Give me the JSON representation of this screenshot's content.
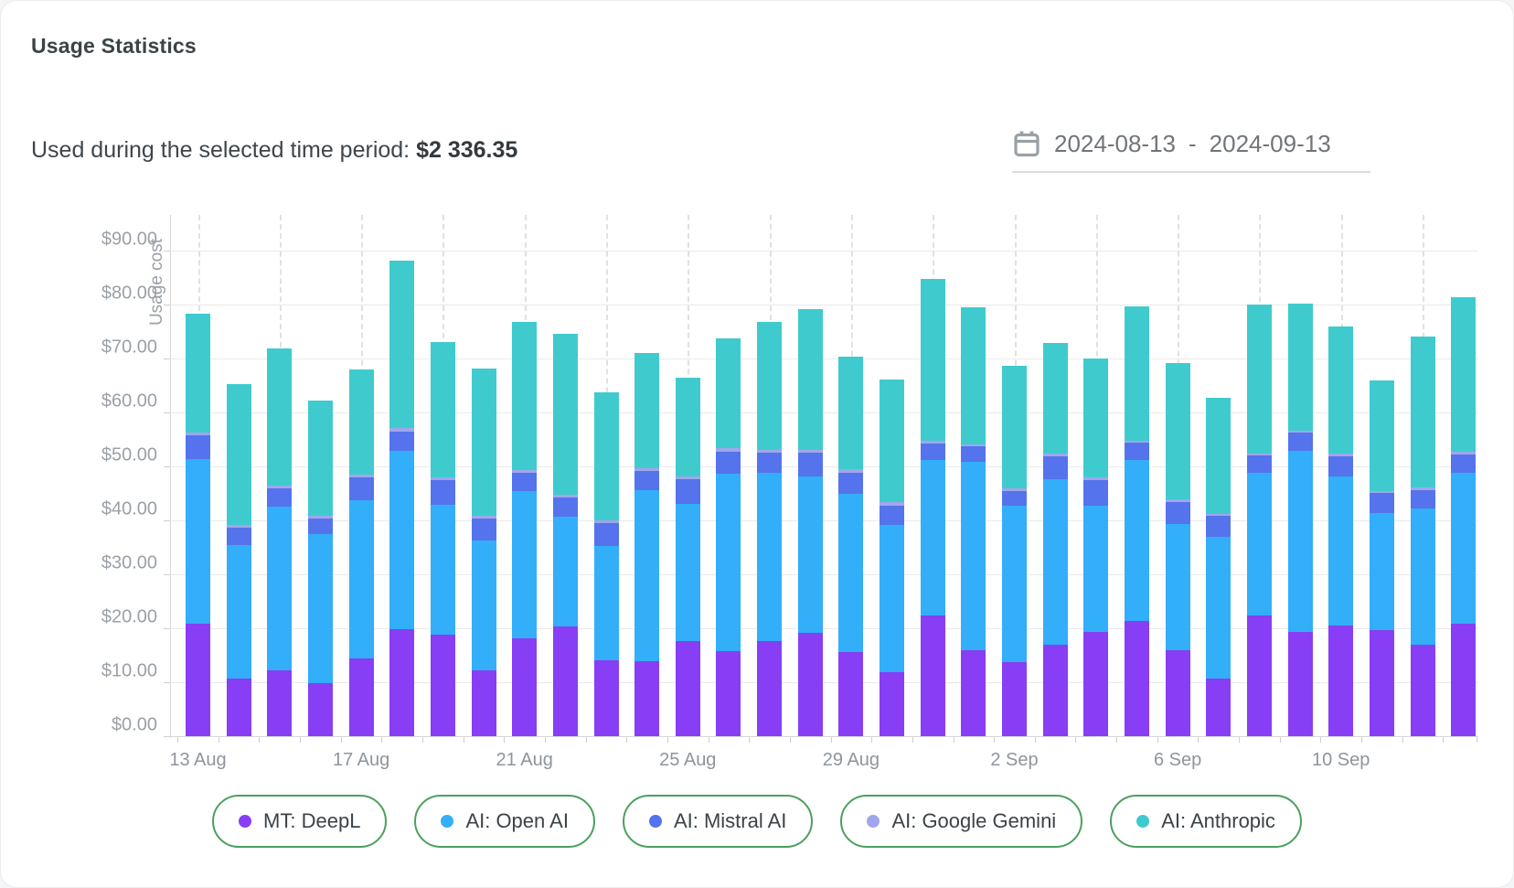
{
  "header": {
    "title": "Usage Statistics"
  },
  "summary": {
    "label": "Used during the selected time period: ",
    "value": "$2 336.35"
  },
  "date_range": {
    "start": "2024-08-13",
    "separator": "-",
    "end": "2024-09-13",
    "icon": "calendar-icon"
  },
  "colors": {
    "deepl": "#873EF4",
    "openai": "#33AEF8",
    "mistral": "#5573EC",
    "gemini": "#A0A6EC",
    "anthropic": "#3FCBCE",
    "legend_border": "#4ca05d",
    "grid": "#eaeaea",
    "axis_text": "#9aa0a6"
  },
  "chart_data": {
    "type": "bar",
    "stacked": true,
    "title": "",
    "xlabel": "",
    "ylabel": "Usage cost",
    "ylim": [
      0,
      95.8
    ],
    "ytick_step": 10,
    "ytick_prefix": "$",
    "ytick_suffix": ".00",
    "grid": true,
    "legend_position": "bottom",
    "label_every": 4,
    "x_labeled_ticks": [
      "13 Aug",
      "17 Aug",
      "21 Aug",
      "25 Aug",
      "29 Aug",
      "2 Sep",
      "6 Sep",
      "10 Sep"
    ],
    "categories": [
      "13 Aug",
      "14 Aug",
      "15 Aug",
      "16 Aug",
      "17 Aug",
      "18 Aug",
      "19 Aug",
      "20 Aug",
      "21 Aug",
      "22 Aug",
      "23 Aug",
      "24 Aug",
      "25 Aug",
      "26 Aug",
      "27 Aug",
      "28 Aug",
      "29 Aug",
      "30 Aug",
      "31 Aug",
      "1 Sep",
      "2 Sep",
      "3 Sep",
      "4 Sep",
      "5 Sep",
      "6 Sep",
      "7 Sep",
      "8 Sep",
      "9 Sep",
      "10 Sep",
      "11 Sep",
      "12 Sep",
      "13 Sep"
    ],
    "series": [
      {
        "name": "MT: DeepL",
        "color": "#873EF4",
        "values": [
          20.8,
          10.7,
          12.2,
          9.9,
          14.4,
          19.9,
          18.9,
          12.2,
          18.2,
          20.4,
          14.1,
          13.9,
          17.6,
          15.7,
          17.6,
          19.2,
          15.6,
          11.8,
          22.3,
          15.9,
          13.7,
          17.0,
          19.3,
          21.4,
          16.0,
          10.6,
          22.4,
          19.4,
          20.5,
          19.6,
          16.9,
          20.9
        ]
      },
      {
        "name": "AI: Open AI",
        "color": "#33AEF8",
        "values": [
          30.5,
          24.8,
          30.3,
          27.5,
          29.3,
          32.9,
          24.0,
          24.0,
          27.2,
          20.2,
          21.2,
          31.7,
          25.5,
          32.9,
          31.3,
          29.0,
          29.3,
          27.4,
          28.9,
          34.9,
          29.0,
          30.6,
          23.5,
          29.8,
          23.4,
          26.4,
          26.4,
          33.5,
          27.6,
          21.7,
          25.3,
          27.9
        ]
      },
      {
        "name": "AI: Mistral AI",
        "color": "#5573EC",
        "values": [
          4.5,
          3.2,
          3.5,
          2.9,
          4.2,
          3.6,
          4.5,
          4.2,
          3.5,
          3.6,
          4.2,
          3.5,
          4.6,
          4.2,
          3.7,
          4.3,
          4.0,
          3.6,
          3.1,
          2.9,
          2.8,
          4.3,
          4.6,
          3.2,
          4.0,
          3.8,
          3.2,
          3.3,
          3.8,
          3.8,
          3.4,
          3.4
        ]
      },
      {
        "name": "AI: Google Gemini",
        "color": "#A0A6EC",
        "values": [
          0.5,
          0.5,
          0.5,
          0.5,
          0.5,
          0.7,
          0.5,
          0.4,
          0.5,
          0.5,
          0.5,
          0.5,
          0.5,
          0.6,
          0.5,
          0.6,
          0.6,
          0.6,
          0.5,
          0.4,
          0.5,
          0.4,
          0.5,
          0.4,
          0.5,
          0.4,
          0.4,
          0.5,
          0.5,
          0.4,
          0.5,
          0.6
        ]
      },
      {
        "name": "AI: Anthropic",
        "color": "#3FCBCE",
        "values": [
          22.0,
          26.1,
          25.3,
          21.4,
          19.6,
          31.1,
          25.2,
          27.3,
          27.4,
          29.9,
          23.8,
          21.5,
          18.3,
          20.3,
          23.7,
          26.1,
          20.9,
          22.7,
          29.9,
          25.4,
          22.6,
          20.6,
          22.1,
          24.9,
          25.3,
          21.6,
          27.6,
          23.4,
          23.6,
          20.4,
          28.0,
          28.5
        ]
      }
    ]
  }
}
